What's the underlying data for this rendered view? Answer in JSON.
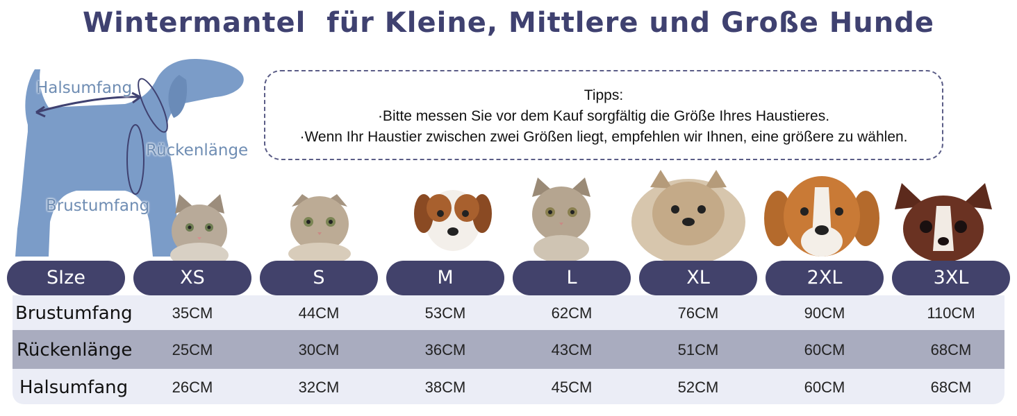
{
  "title": "Wintermantel  für Kleine, Mittlere und Große Hunde",
  "dog_diagram": {
    "neck_label": "Halsumfang",
    "back_label": "Rückenlänge",
    "chest_label": "Brustumfang",
    "colors": {
      "dog": "#7b9cc8",
      "arrow": "#3f4170"
    }
  },
  "tips": {
    "heading": "Tipps:",
    "line1": "·Bitte messen Sie vor dem Kauf sorgfältig die Größe Ihres Haustieres.",
    "line2": "·Wenn Ihr Haustier zwischen zwei Größen liegt, empfehlen wir Ihnen, eine größere zu wählen."
  },
  "animals": [
    "kitten-icon",
    "kitten-icon",
    "puppy-icon",
    "kitten-icon",
    "puppy-icon",
    "puppy-icon",
    "puppy-icon"
  ],
  "header": {
    "size_label": "SIze",
    "sizes": [
      "XS",
      "S",
      "M",
      "L",
      "XL",
      "2XL",
      "3XL"
    ]
  },
  "rows": [
    {
      "label": "Brustumfang",
      "values": [
        "35CM",
        "44CM",
        "53CM",
        "62CM",
        "76CM",
        "90CM",
        "110CM"
      ]
    },
    {
      "label": "Rückenlänge",
      "values": [
        "25CM",
        "30CM",
        "36CM",
        "43CM",
        "51CM",
        "60CM",
        "68CM"
      ]
    },
    {
      "label": "Halsumfang",
      "values": [
        "26CM",
        "32CM",
        "38CM",
        "45CM",
        "52CM",
        "60CM",
        "68CM"
      ]
    }
  ],
  "colors": {
    "pill": "#42426b",
    "title": "#3f4170",
    "row_light": "#ebedf6",
    "row_dark": "#a9acbf"
  }
}
